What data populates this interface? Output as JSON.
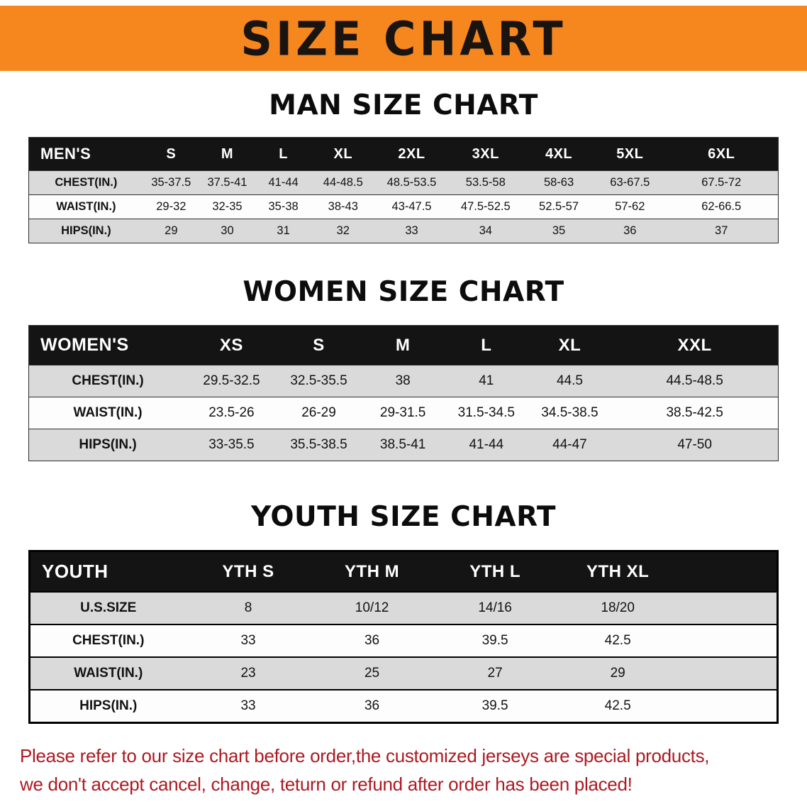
{
  "banner": {
    "title": "SIZE CHART"
  },
  "colors": {
    "banner_bg": "#F6871E",
    "table_header_bg": "#141414",
    "row_shade": "#DADADA",
    "notice_text": "#AC1A22"
  },
  "sections": {
    "men": {
      "heading": "MAN SIZE CHART",
      "table": {
        "header": [
          "MEN'S",
          "S",
          "M",
          "L",
          "XL",
          "2XL",
          "3XL",
          "4XL",
          "5XL",
          "6XL"
        ],
        "rows": [
          [
            "CHEST(IN.)",
            "35-37.5",
            "37.5-41",
            "41-44",
            "44-48.5",
            "48.5-53.5",
            "53.5-58",
            "58-63",
            "63-67.5",
            "67.5-72"
          ],
          [
            "WAIST(IN.)",
            "29-32",
            "32-35",
            "35-38",
            "38-43",
            "43-47.5",
            "47.5-52.5",
            "52.5-57",
            "57-62",
            "62-66.5"
          ],
          [
            "HIPS(IN.)",
            "29",
            "30",
            "31",
            "32",
            "33",
            "34",
            "35",
            "36",
            "37"
          ]
        ]
      }
    },
    "women": {
      "heading": "WOMEN SIZE CHART",
      "table": {
        "header": [
          "WOMEN'S",
          "XS",
          "S",
          "M",
          "L",
          "XL",
          "XXL"
        ],
        "rows": [
          [
            "CHEST(IN.)",
            "29.5-32.5",
            "32.5-35.5",
            "38",
            "41",
            "44.5",
            "44.5-48.5"
          ],
          [
            "WAIST(IN.)",
            "23.5-26",
            "26-29",
            "29-31.5",
            "31.5-34.5",
            "34.5-38.5",
            "38.5-42.5"
          ],
          [
            "HIPS(IN.)",
            "33-35.5",
            "35.5-38.5",
            "38.5-41",
            "41-44",
            "44-47",
            "47-50"
          ]
        ]
      }
    },
    "youth": {
      "heading": "YOUTH SIZE CHART",
      "table": {
        "header": [
          "YOUTH",
          "YTH S",
          "YTH M",
          "YTH L",
          "YTH XL"
        ],
        "rows": [
          [
            "U.S.SIZE",
            "8",
            "10/12",
            "14/16",
            "18/20"
          ],
          [
            "CHEST(IN.)",
            "33",
            "36",
            "39.5",
            "42.5"
          ],
          [
            "WAIST(IN.)",
            "23",
            "25",
            "27",
            "29"
          ],
          [
            "HIPS(IN.)",
            "33",
            "36",
            "39.5",
            "42.5"
          ]
        ]
      }
    }
  },
  "notice": {
    "line1": "Please refer to our size chart before order,the customized jerseys are special products,",
    "line2": "we don't accept cancel, change, teturn or refund after order has been placed!"
  }
}
